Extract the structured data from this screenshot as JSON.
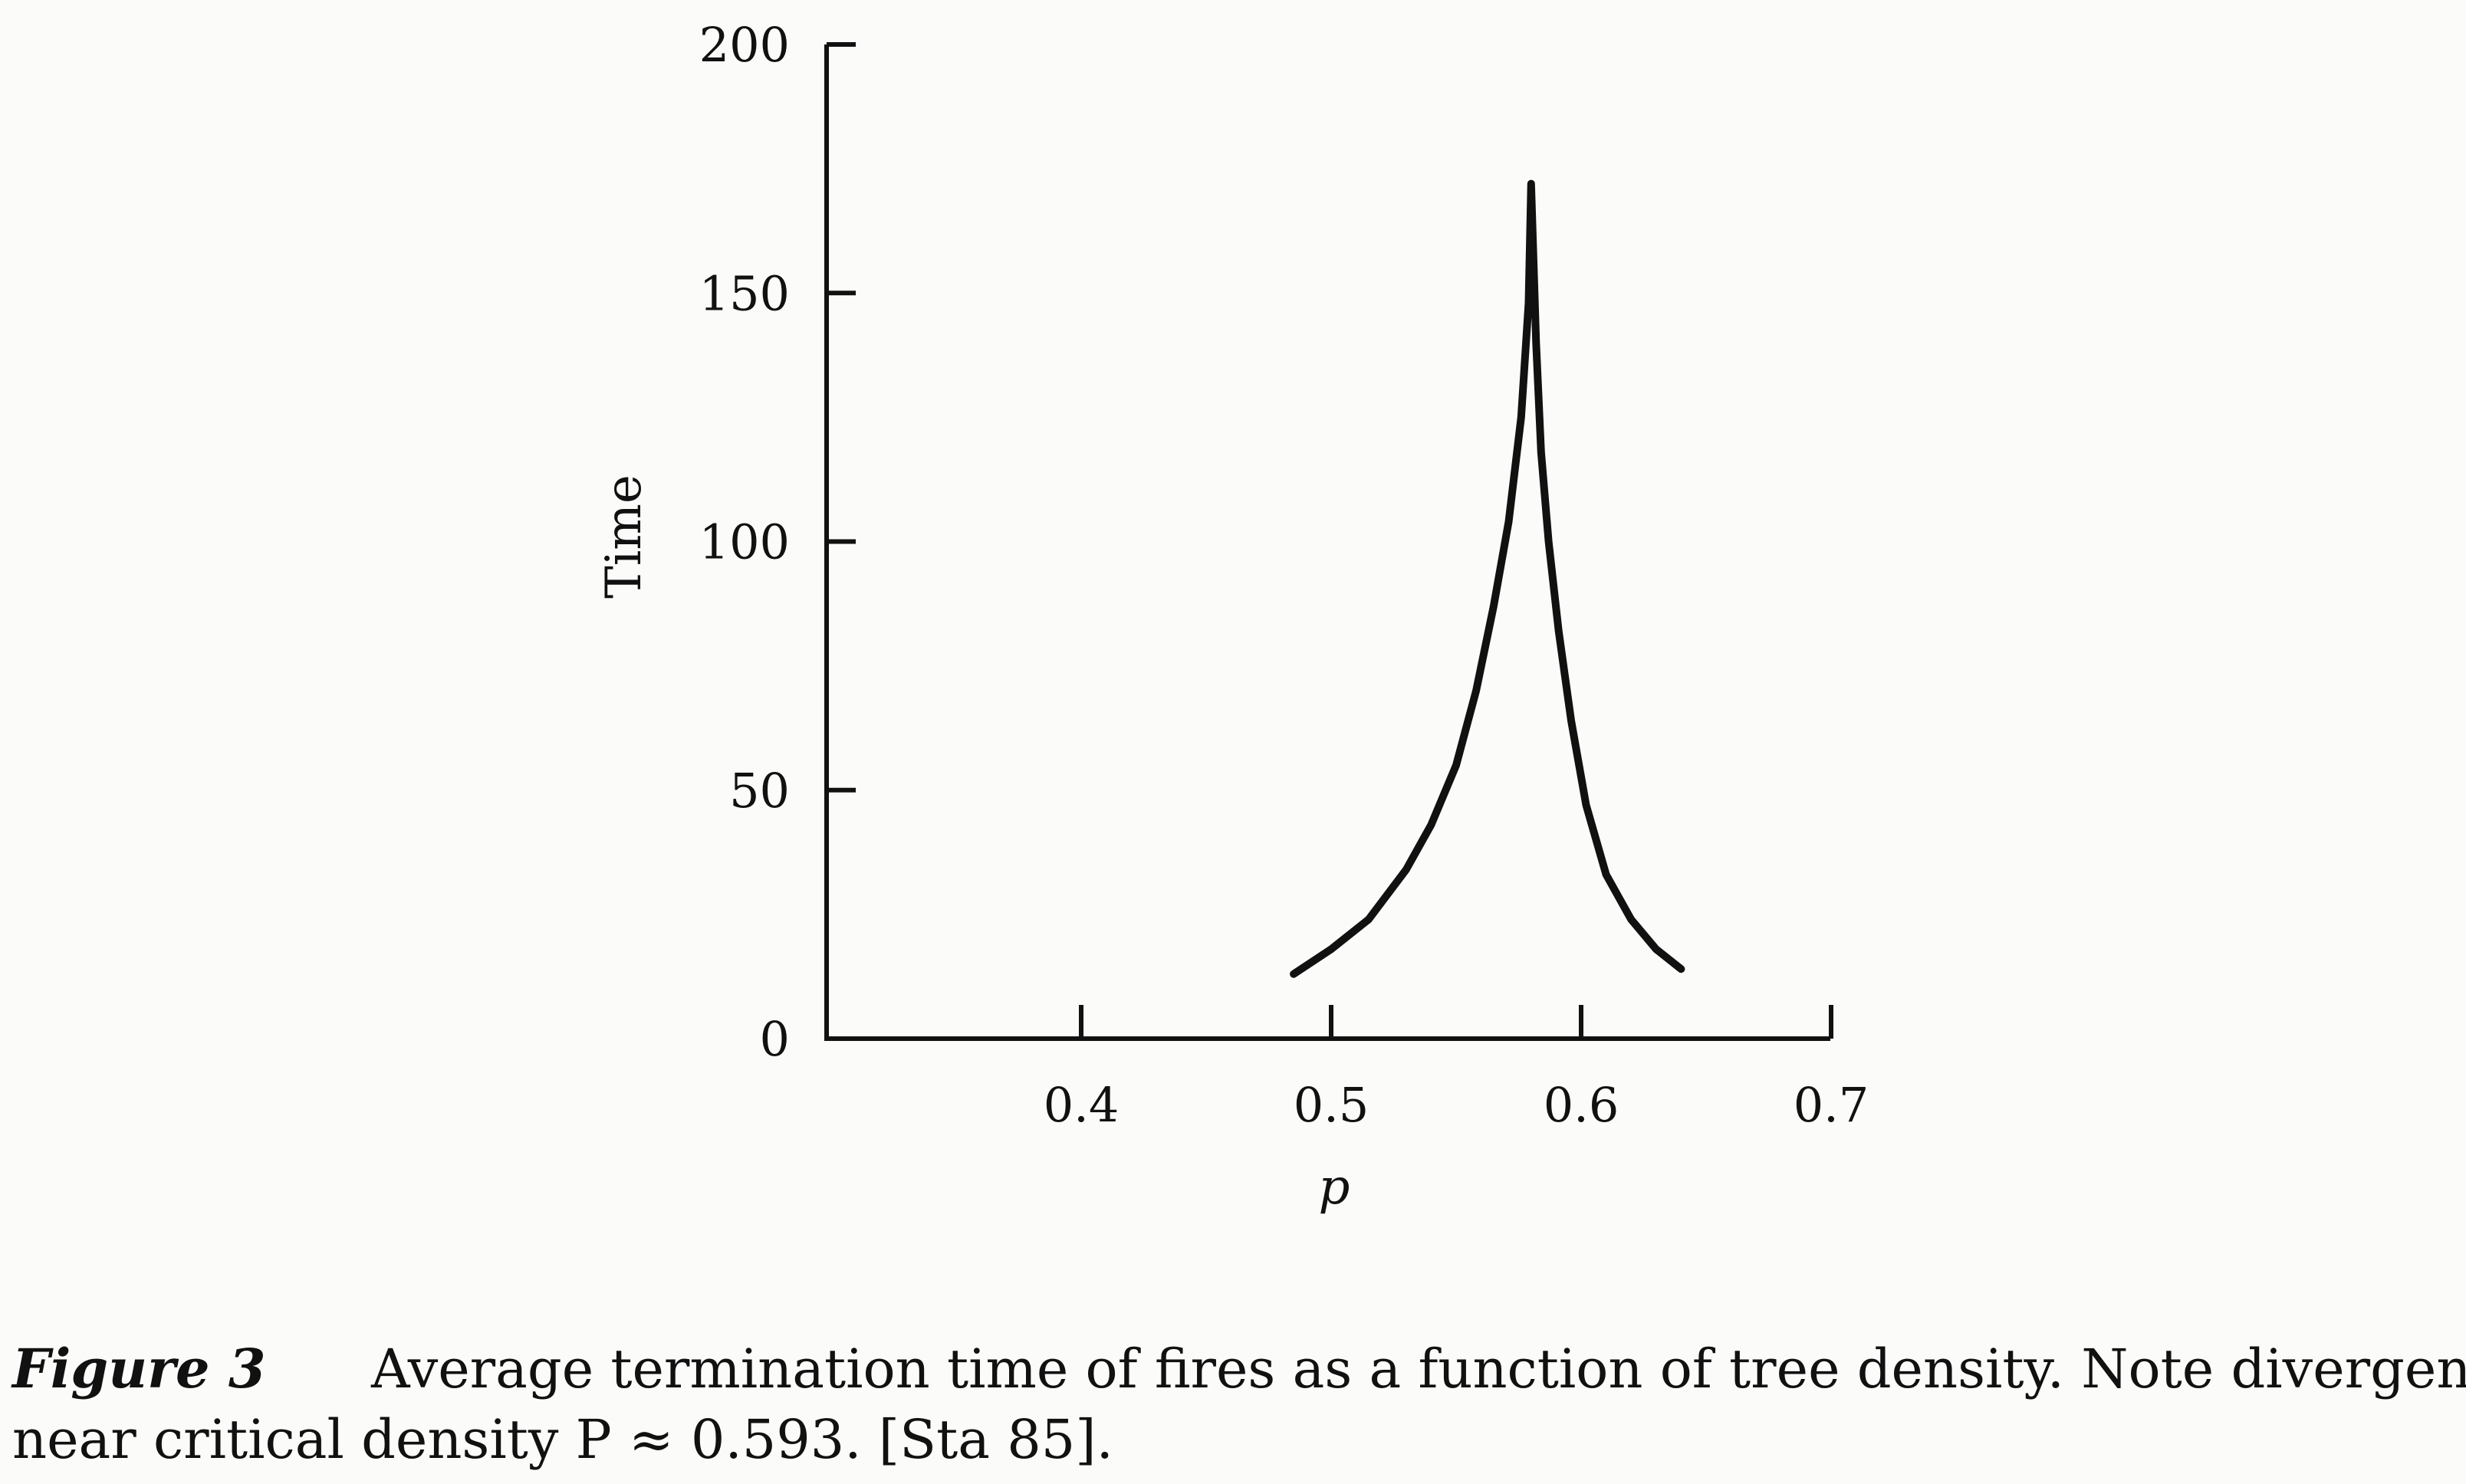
{
  "chart_data": {
    "type": "line",
    "xlabel": "p",
    "ylabel": "Time",
    "xlim": [
      0.3,
      0.7
    ],
    "ylim": [
      0,
      200
    ],
    "xticks": [
      0.4,
      0.5,
      0.6,
      0.7
    ],
    "xtick_labels": [
      "0.4",
      "0.5",
      "0.6",
      "0.7"
    ],
    "yticks": [
      0,
      50,
      100,
      150,
      200
    ],
    "ytick_labels": [
      "0",
      "50",
      "100",
      "150",
      "200"
    ],
    "grid": false,
    "series": [
      {
        "x": [
          0.485,
          0.5,
          0.515,
          0.53,
          0.54,
          0.55,
          0.558,
          0.565,
          0.571,
          0.576,
          0.579,
          0.58,
          0.582,
          0.584,
          0.587,
          0.591,
          0.596,
          0.602,
          0.61,
          0.62,
          0.63,
          0.64
        ],
        "values": [
          13,
          18,
          24,
          34,
          43,
          55,
          70,
          87,
          104,
          125,
          148,
          172,
          140,
          118,
          100,
          82,
          64,
          47,
          33,
          24,
          18,
          14
        ]
      }
    ]
  },
  "caption": {
    "label": "Figure 3",
    "line1": "Average termination time of fires as a function of tree density. Note divergence",
    "line2": "near critical density P ≈ 0.593. [Sta 85]."
  }
}
